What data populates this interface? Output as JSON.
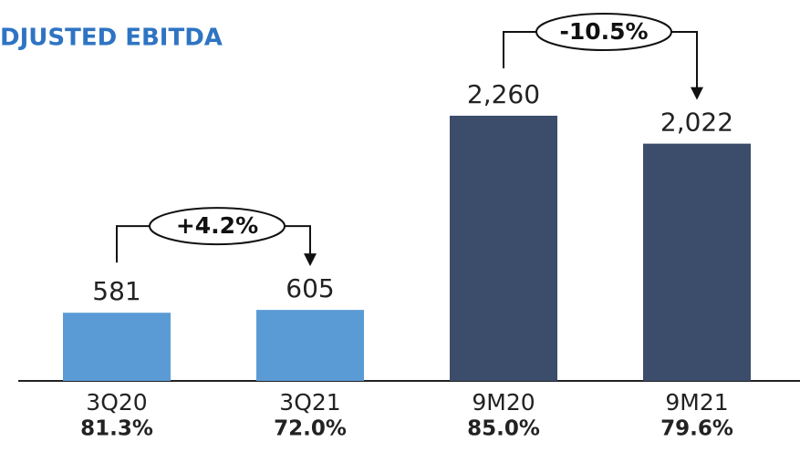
{
  "chart_data": {
    "type": "bar",
    "title": "DJUSTED EBITDA",
    "categories": [
      "3Q20",
      "3Q21",
      "9M20",
      "9M21"
    ],
    "values": [
      581,
      605,
      2260,
      2022
    ],
    "value_labels": [
      "581",
      "605",
      "2,260",
      "2,022"
    ],
    "colors": [
      "#5b9bd5",
      "#5b9bd5",
      "#3b4d6b",
      "#3b4d6b"
    ],
    "margins": [
      "81.3%",
      "72.0%",
      "85.0%",
      "79.6%"
    ],
    "annotations": [
      "+4.2%",
      "-10.5%"
    ]
  }
}
